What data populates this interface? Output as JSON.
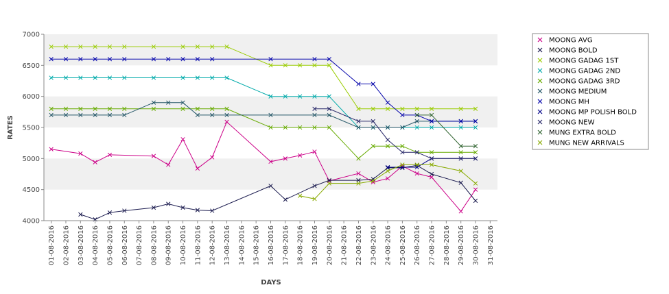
{
  "chart_data": {
    "type": "line",
    "title": "",
    "xlabel": "DAYS",
    "ylabel": "RATES",
    "ylim": [
      4000,
      7000
    ],
    "yticks": [
      4000,
      4500,
      5000,
      5500,
      6000,
      6500,
      7000
    ],
    "grid": "horizontal bands",
    "legend_position": "right",
    "categories": [
      "01-08-2016",
      "02-08-2016",
      "03-08-2016",
      "04-08-2016",
      "05-08-2016",
      "06-08-2016",
      "07-08-2016",
      "08-08-2016",
      "09-08-2016",
      "10-08-2016",
      "11-08-2016",
      "12-08-2016",
      "13-08-2016",
      "14-08-2016",
      "15-08-2016",
      "16-08-2016",
      "17-08-2016",
      "18-08-2016",
      "19-08-2016",
      "20-08-2016",
      "21-08-2016",
      "22-08-2016",
      "23-08-2016",
      "24-08-2016",
      "25-08-2016",
      "26-08-2016",
      "27-08-2016",
      "28-08-2016",
      "29-08-2016",
      "30-08-2016",
      "31-08-2016"
    ],
    "series": [
      {
        "name": "MOONG AVG",
        "color": "#cc0088",
        "values": [
          5150,
          null,
          5080,
          4940,
          5060,
          null,
          null,
          5040,
          4900,
          5310,
          4840,
          5020,
          5590,
          null,
          null,
          4950,
          5000,
          5050,
          5110,
          4640,
          null,
          4760,
          4620,
          4680,
          4880,
          4760,
          4700,
          null,
          4150,
          4500,
          null
        ]
      },
      {
        "name": "MOONG BOLD",
        "color": "#1a1a4e",
        "values": [
          null,
          null,
          4100,
          4020,
          4130,
          4160,
          null,
          4210,
          4270,
          4210,
          4170,
          4160,
          null,
          null,
          null,
          4560,
          4340,
          null,
          4560,
          4650,
          null,
          4650,
          4670,
          4850,
          4850,
          4890,
          4750,
          null,
          4610,
          4320,
          null
        ]
      },
      {
        "name": "MOONG GADAG 1ST",
        "color": "#99cc00",
        "values": [
          6800,
          6800,
          6800,
          6800,
          6800,
          6800,
          null,
          6800,
          null,
          6800,
          6800,
          6800,
          6800,
          null,
          null,
          6500,
          6500,
          6500,
          6500,
          6500,
          null,
          5800,
          5800,
          5800,
          5800,
          5800,
          5800,
          null,
          5800,
          5800,
          null
        ]
      },
      {
        "name": "MOONG GADAG 2ND",
        "color": "#00aaaa",
        "values": [
          6300,
          6300,
          6300,
          6300,
          6300,
          6300,
          null,
          6300,
          null,
          6300,
          6300,
          6300,
          6300,
          null,
          null,
          6000,
          6000,
          6000,
          6000,
          6000,
          null,
          5500,
          5500,
          5500,
          5500,
          5500,
          5500,
          null,
          5500,
          5500,
          null
        ]
      },
      {
        "name": "MOONG GADAG 3RD",
        "color": "#66aa00",
        "values": [
          5800,
          5800,
          5800,
          5800,
          5800,
          5800,
          null,
          5800,
          null,
          5800,
          5800,
          5800,
          5800,
          null,
          null,
          5500,
          5500,
          5500,
          5500,
          5500,
          null,
          5000,
          5200,
          5200,
          5200,
          5100,
          5100,
          null,
          5100,
          5100,
          null
        ]
      },
      {
        "name": "MOONG MEDIUM",
        "color": "#225566",
        "values": [
          5700,
          5700,
          5700,
          5700,
          5700,
          5700,
          null,
          5900,
          5900,
          5900,
          5700,
          5700,
          5700,
          null,
          null,
          5700,
          null,
          null,
          5700,
          5700,
          null,
          5500,
          5500,
          5500,
          5500,
          5600,
          5600,
          null,
          5600,
          5600,
          null
        ]
      },
      {
        "name": "MOONG MH",
        "color": "#0000aa",
        "values": [
          6600,
          6600,
          6600,
          6600,
          6600,
          6600,
          null,
          6600,
          6600,
          6600,
          6600,
          6600,
          null,
          null,
          null,
          6600,
          null,
          null,
          6600,
          6600,
          null,
          6200,
          6200,
          5900,
          5700,
          5700,
          5600,
          null,
          5600,
          5600,
          null
        ]
      },
      {
        "name": "MOONG MP POLISH BOLD",
        "color": "#000088",
        "values": [
          null,
          null,
          null,
          null,
          null,
          null,
          null,
          null,
          null,
          null,
          null,
          null,
          null,
          null,
          null,
          null,
          null,
          null,
          null,
          null,
          null,
          null,
          null,
          4860,
          4860,
          4860,
          5000,
          null,
          5000,
          5000,
          null
        ]
      },
      {
        "name": "MOONG NEW",
        "color": "#2a2a6a",
        "values": [
          null,
          null,
          null,
          null,
          null,
          null,
          null,
          null,
          null,
          null,
          null,
          null,
          null,
          null,
          null,
          null,
          null,
          null,
          5800,
          5800,
          null,
          5600,
          5600,
          5300,
          5100,
          5100,
          5000,
          null,
          5000,
          5000,
          null
        ]
      },
      {
        "name": "MUNG EXTRA BOLD",
        "color": "#336633",
        "values": [
          null,
          null,
          null,
          null,
          null,
          null,
          null,
          null,
          null,
          null,
          null,
          null,
          null,
          null,
          null,
          null,
          null,
          null,
          null,
          null,
          null,
          null,
          null,
          null,
          null,
          5700,
          5700,
          null,
          5200,
          5200,
          null
        ]
      },
      {
        "name": "MUNG NEW ARRIVALS",
        "color": "#88aa00",
        "values": [
          null,
          null,
          null,
          null,
          null,
          null,
          null,
          null,
          null,
          null,
          null,
          null,
          null,
          null,
          null,
          null,
          null,
          4400,
          4350,
          4600,
          null,
          4600,
          4640,
          4800,
          4900,
          4900,
          4900,
          null,
          4800,
          4600,
          null
        ]
      }
    ]
  }
}
